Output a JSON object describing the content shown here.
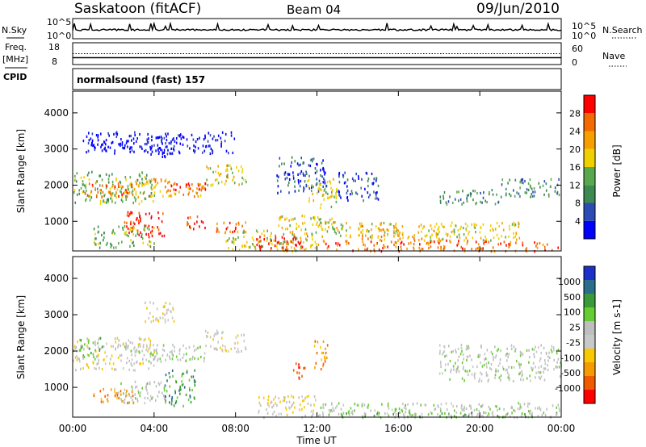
{
  "header": {
    "station": "Saskatoon (fitACF)",
    "beam": "Beam 04",
    "date": "09/Jun/2010"
  },
  "left_labels": {
    "nsky": "N.Sky",
    "freq": "Freq.",
    "freq_unit": "[MHz]",
    "cpid": "CPID"
  },
  "right_labels": {
    "nsearch": "N.Search",
    "nave": "Nave"
  },
  "cpid_text": "normalsound (fast) 157",
  "colors": {
    "power": [
      "#0000ff",
      "#2d4bb4",
      "#3c8a52",
      "#5aa84e",
      "#f0d000",
      "#f5a000",
      "#f26a00",
      "#ff0000"
    ],
    "velocity": [
      "#ff0000",
      "#f05a00",
      "#f59a00",
      "#f8c800",
      "#c8c8c8",
      "#bebebe",
      "#66cc33",
      "#3a9a3a",
      "#2a6e8c",
      "#1a30c8"
    ],
    "noise_sky": "#000000",
    "freq_line": "#000000"
  },
  "chart_data": [
    {
      "type": "line",
      "title": "N.Sky / N.Search",
      "yticks_left": [
        "10^5",
        "10^0"
      ],
      "yticks_right": [
        "10^5",
        "10^0"
      ],
      "xlim": [
        0,
        24
      ]
    },
    {
      "type": "line",
      "title": "Freq. / Nave",
      "yticks_left": [
        "18",
        "8"
      ],
      "yticks_right": [
        "60",
        "0"
      ],
      "freq_mhz": 11,
      "nave": 30,
      "xlim": [
        0,
        24
      ]
    },
    {
      "type": "heatmap",
      "title": "Power",
      "ylabel": "Slant Range [km]",
      "ylim": [
        180,
        4600
      ],
      "yticks": [
        1000,
        2000,
        3000,
        4000
      ],
      "xlim": [
        0,
        24
      ],
      "colorbar_label": "Power [dB]",
      "colorbar_ticks": [
        "28",
        "24",
        "20",
        "16",
        "12",
        "8",
        "4"
      ],
      "regions": [
        {
          "t0": 0,
          "t1": 4,
          "r0": 1500,
          "r1": 2400,
          "level": 3
        },
        {
          "t0": 0.5,
          "t1": 3,
          "r0": 1700,
          "r1": 2100,
          "level": 6
        },
        {
          "t0": 2.5,
          "t1": 6.5,
          "r0": 1700,
          "r1": 2200,
          "level": 5
        },
        {
          "t0": 4.5,
          "t1": 6.5,
          "r0": 1900,
          "r1": 2100,
          "level": 7
        },
        {
          "t0": 6.5,
          "t1": 8.5,
          "r0": 2000,
          "r1": 2600,
          "level": 4
        },
        {
          "t0": 2.5,
          "t1": 4.5,
          "r0": 600,
          "r1": 1300,
          "level": 7
        },
        {
          "t0": 5.5,
          "t1": 6.5,
          "r0": 800,
          "r1": 1200,
          "level": 7
        },
        {
          "t0": 1,
          "t1": 4,
          "r0": 300,
          "r1": 900,
          "level": 3
        },
        {
          "t0": 7,
          "t1": 9,
          "r0": 700,
          "r1": 1000,
          "level": 6
        },
        {
          "t0": 7.5,
          "t1": 12,
          "r0": 200,
          "r1": 800,
          "level": 4
        },
        {
          "t0": 9,
          "t1": 11.5,
          "r0": 200,
          "r1": 600,
          "level": 7
        },
        {
          "t0": 10,
          "t1": 13,
          "r0": 800,
          "r1": 1200,
          "level": 4
        },
        {
          "t0": 12,
          "t1": 16,
          "r0": 600,
          "r1": 1000,
          "level": 4
        },
        {
          "t0": 12,
          "t1": 24,
          "r0": 200,
          "r1": 500,
          "level": 6
        },
        {
          "t0": 14,
          "t1": 18,
          "r0": 500,
          "r1": 900,
          "level": 5
        },
        {
          "t0": 17,
          "t1": 22,
          "r0": 500,
          "r1": 1000,
          "level": 4
        },
        {
          "t0": 13,
          "t1": 15,
          "r0": 1600,
          "r1": 2400,
          "level": 1
        },
        {
          "t0": 18,
          "t1": 21,
          "r0": 1500,
          "r1": 1900,
          "level": 2
        },
        {
          "t0": 21,
          "t1": 24,
          "r0": 1700,
          "r1": 2200,
          "level": 2
        },
        {
          "t0": 3.5,
          "t1": 5,
          "r0": 2800,
          "r1": 3400,
          "level": 0
        },
        {
          "t0": 0.5,
          "t1": 8,
          "r0": 2900,
          "r1": 3500,
          "level": 0
        },
        {
          "t0": 10,
          "t1": 12.5,
          "r0": 1800,
          "r1": 2800,
          "level": 1
        },
        {
          "t0": 11.5,
          "t1": 13,
          "r0": 1400,
          "r1": 2200,
          "level": 4
        }
      ]
    },
    {
      "type": "heatmap",
      "title": "Velocity",
      "ylabel": "Slant Range [km]",
      "xlabel": "Time UT",
      "ylim": [
        180,
        4600
      ],
      "yticks": [
        1000,
        2000,
        3000,
        4000
      ],
      "xlim": [
        0,
        24
      ],
      "xticks": [
        "00:00",
        "04:00",
        "08:00",
        "12:00",
        "16:00",
        "20:00",
        "00:00"
      ],
      "colorbar_label": "Velocity [m s-1]",
      "colorbar_ticks": [
        "1000",
        "500",
        "100",
        "25",
        "-25",
        "-100",
        "-500",
        "-1000"
      ],
      "regions": [
        {
          "t0": 0,
          "t1": 4,
          "r0": 1500,
          "r1": 2400,
          "level": 4
        },
        {
          "t0": 0.3,
          "t1": 1.5,
          "r0": 1800,
          "r1": 2400,
          "level": 6
        },
        {
          "t0": 2.5,
          "t1": 6.5,
          "r0": 1700,
          "r1": 2200,
          "level": 5
        },
        {
          "t0": 4.5,
          "t1": 6,
          "r0": 500,
          "r1": 1500,
          "level": 7
        },
        {
          "t0": 6.5,
          "t1": 8.5,
          "r0": 2000,
          "r1": 2600,
          "level": 4
        },
        {
          "t0": 2,
          "t1": 4.5,
          "r0": 600,
          "r1": 1200,
          "level": 5
        },
        {
          "t0": 9,
          "t1": 12,
          "r0": 200,
          "r1": 800,
          "level": 4
        },
        {
          "t0": 12,
          "t1": 24,
          "r0": 200,
          "r1": 600,
          "level": 5
        },
        {
          "t0": 13,
          "t1": 24,
          "r0": 200,
          "r1": 350,
          "level": 6
        },
        {
          "t0": 11.8,
          "t1": 12.5,
          "r0": 1500,
          "r1": 2300,
          "level": 2
        },
        {
          "t0": 10.8,
          "t1": 11.4,
          "r0": 1200,
          "r1": 1700,
          "level": 1
        },
        {
          "t0": 18,
          "t1": 24,
          "r0": 1200,
          "r1": 2200,
          "level": 5
        },
        {
          "t0": 3.5,
          "t1": 5,
          "r0": 2800,
          "r1": 3400,
          "level": 4
        },
        {
          "t0": 1,
          "t1": 3,
          "r0": 600,
          "r1": 1000,
          "level": 2
        }
      ]
    }
  ]
}
